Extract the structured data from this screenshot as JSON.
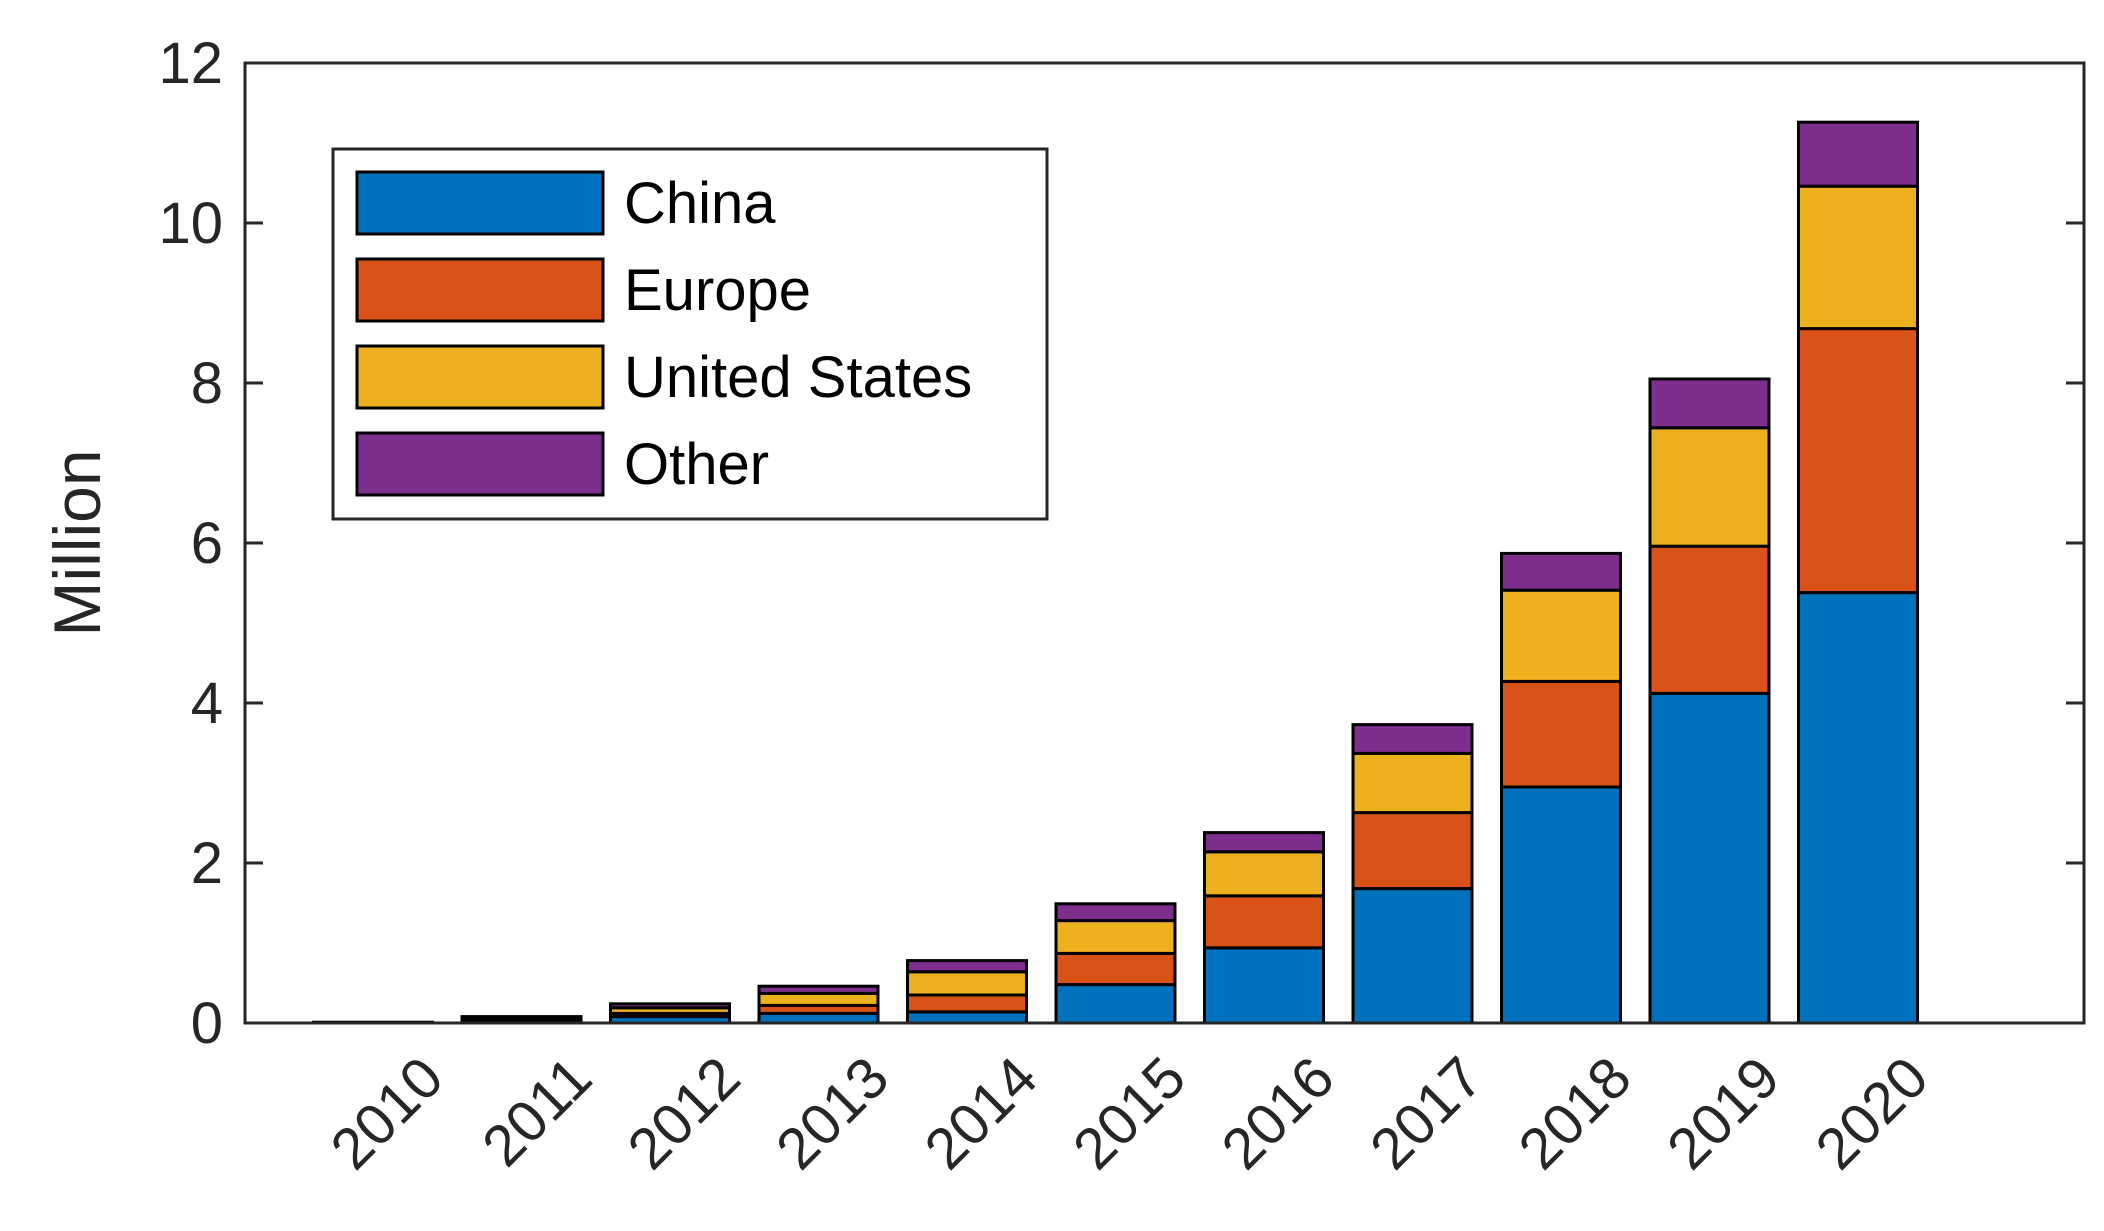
{
  "chart_data": {
    "type": "bar",
    "stacked": true,
    "title": "",
    "xlabel": "",
    "ylabel": "Million",
    "ylim": [
      0,
      12
    ],
    "yticks": [
      "0",
      "2",
      "4",
      "6",
      "8",
      "10",
      "12"
    ],
    "grid": false,
    "legend_position": "top-left",
    "categories": [
      "2010",
      "2011",
      "2012",
      "2013",
      "2014",
      "2015",
      "2016",
      "2017",
      "2018",
      "2019",
      "2020"
    ],
    "series": [
      {
        "name": "China",
        "color": "#0072BD",
        "values": [
          0.01,
          0.03,
          0.08,
          0.12,
          0.14,
          0.48,
          0.94,
          1.68,
          2.95,
          4.12,
          5.38
        ]
      },
      {
        "name": "Europe",
        "color": "#D95319",
        "values": [
          0.0,
          0.01,
          0.04,
          0.1,
          0.21,
          0.39,
          0.65,
          0.95,
          1.32,
          1.84,
          3.3
        ]
      },
      {
        "name": "United States",
        "color": "#EDB120",
        "values": [
          0.0,
          0.02,
          0.07,
          0.15,
          0.29,
          0.41,
          0.55,
          0.74,
          1.14,
          1.48,
          1.78
        ]
      },
      {
        "name": "Other",
        "color": "#7E2F8E",
        "values": [
          0.0,
          0.02,
          0.05,
          0.09,
          0.14,
          0.21,
          0.24,
          0.36,
          0.46,
          0.61,
          0.8
        ]
      }
    ]
  }
}
